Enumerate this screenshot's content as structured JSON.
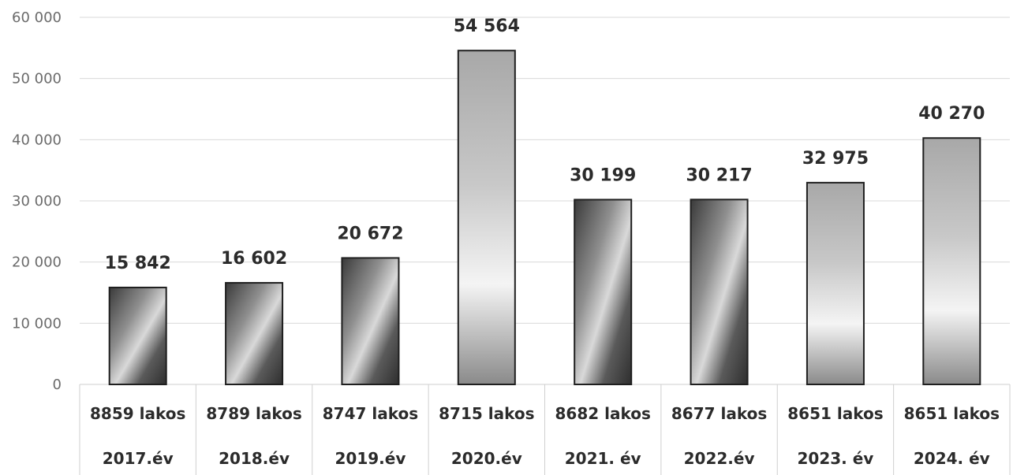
{
  "chart_data": {
    "type": "bar",
    "title": "",
    "xlabel": "",
    "ylabel": "",
    "ylim": [
      0,
      60000
    ],
    "yticks": [
      0,
      10000,
      20000,
      30000,
      40000,
      50000,
      60000
    ],
    "ytick_labels": [
      "0",
      "10 000",
      "20 000",
      "30 000",
      "40 000",
      "50 000",
      "60 000"
    ],
    "grid": true,
    "legend": "none",
    "categories": [
      {
        "population": "8859 lakos",
        "year": "2017.év"
      },
      {
        "population": "8789 lakos",
        "year": "2018.év"
      },
      {
        "population": "8747 lakos",
        "year": "2019.év"
      },
      {
        "population": "8715 lakos",
        "year": "2020.év"
      },
      {
        "population": "8682 lakos",
        "year": "2021. év"
      },
      {
        "population": "8677 lakos",
        "year": "2022.év"
      },
      {
        "population": "8651 lakos",
        "year": "2023. év"
      },
      {
        "population": "8651 lakos",
        "year": "2024. év"
      }
    ],
    "values": [
      15842,
      16602,
      20672,
      54564,
      30199,
      30217,
      32975,
      40270
    ],
    "value_labels": [
      "15 842",
      "16 602",
      "20 672",
      "54 564",
      "30 199",
      "30 217",
      "32 975",
      "40 270"
    ],
    "bar_style": [
      "dark-gradient",
      "dark-gradient",
      "dark-gradient",
      "light-gradient",
      "dark-gradient",
      "dark-gradient",
      "light-gradient",
      "light-gradient"
    ]
  }
}
